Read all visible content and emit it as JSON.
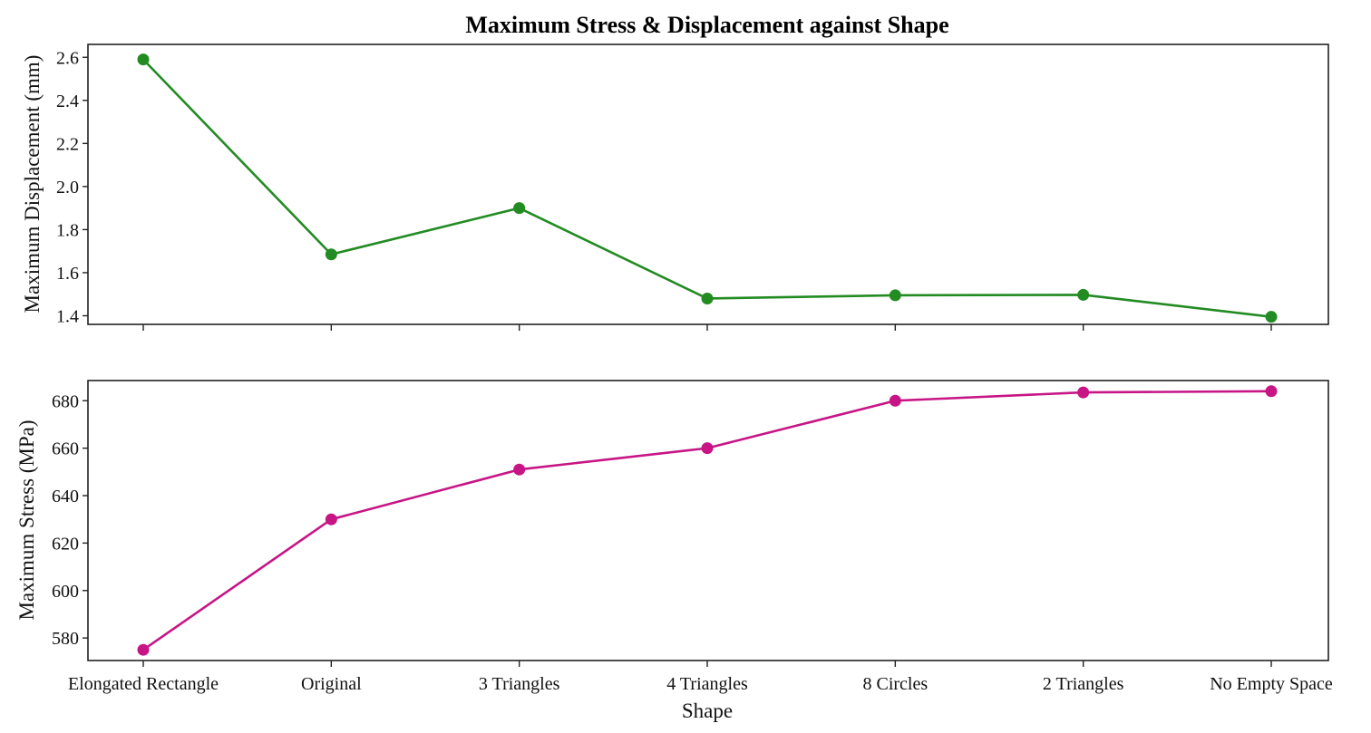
{
  "chart_data": [
    {
      "type": "line",
      "panel": "top",
      "title": "Maximum Stress & Displacement against Shape",
      "xlabel": "",
      "ylabel": "Maximum Displacement (mm)",
      "categories": [
        "Elongated Rectangle",
        "Original",
        "3 Triangles",
        "4 Triangles",
        "8 Circles",
        "2 Triangles",
        "No Empty Space"
      ],
      "series": [
        {
          "name": "Maximum Displacement (mm)",
          "color": "#228b22",
          "values": [
            2.59,
            1.685,
            1.9,
            1.48,
            1.495,
            1.497,
            1.395
          ]
        }
      ],
      "ylim": [
        1.36,
        2.66
      ],
      "yticks": [
        1.4,
        1.6,
        1.8,
        2.0,
        2.2,
        2.4,
        2.6
      ],
      "ytick_labels": [
        "1.4",
        "1.6",
        "1.8",
        "2.0",
        "2.2",
        "2.4",
        "2.6"
      ],
      "grid": false
    },
    {
      "type": "line",
      "panel": "bottom",
      "title": "",
      "xlabel": "Shape",
      "ylabel": "Maximum Stress (MPa)",
      "categories": [
        "Elongated Rectangle",
        "Original",
        "3 Triangles",
        "4 Triangles",
        "8 Circles",
        "2 Triangles",
        "No Empty Space"
      ],
      "series": [
        {
          "name": "Maximum Stress (MPa)",
          "color": "#c71585",
          "values": [
            575,
            630,
            651,
            660,
            680,
            683.5,
            684
          ]
        }
      ],
      "ylim": [
        570.5,
        688.5
      ],
      "yticks": [
        580,
        600,
        620,
        640,
        660,
        680
      ],
      "ytick_labels": [
        "580",
        "600",
        "620",
        "640",
        "660",
        "680"
      ],
      "grid": false
    }
  ]
}
